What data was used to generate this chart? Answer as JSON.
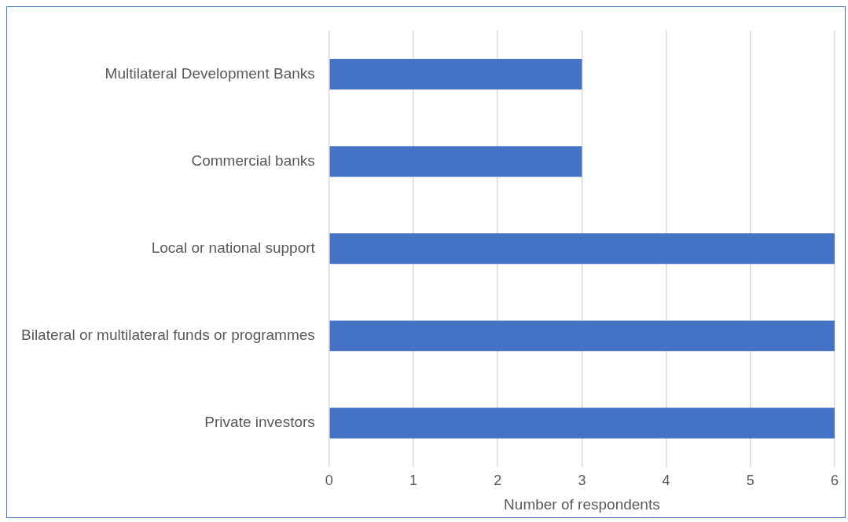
{
  "chart_data": {
    "type": "bar",
    "orientation": "horizontal",
    "xlabel": "Number of respondents",
    "categories": [
      "Multilateral Development Banks",
      "Commercial banks",
      "Local or national support",
      "Bilateral or multilateral funds or programmes",
      "Private investors"
    ],
    "values": [
      3,
      3,
      6,
      6,
      6
    ],
    "color": "#4472c4",
    "xlim": [
      0,
      6
    ],
    "xticks": [
      0,
      1,
      2,
      3,
      4,
      5,
      6
    ],
    "grid": "x",
    "legend": false
  }
}
